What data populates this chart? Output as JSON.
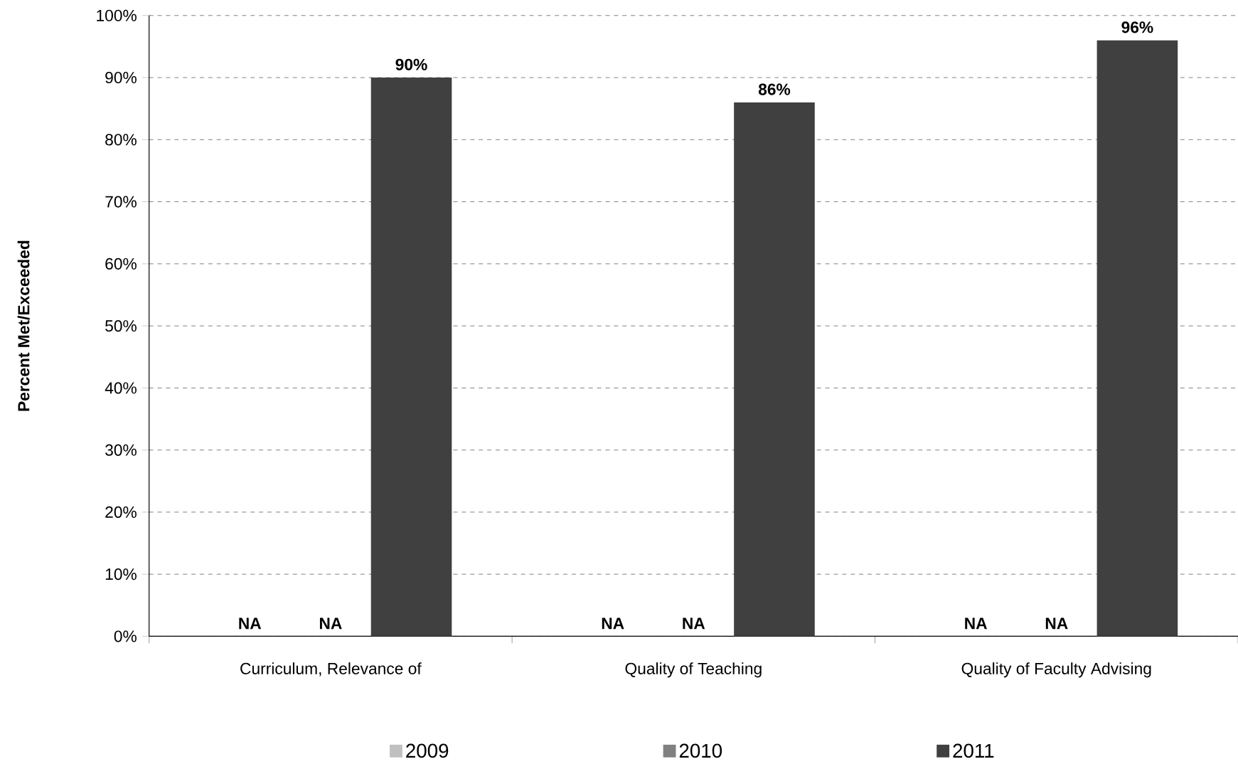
{
  "chart_data": {
    "type": "bar",
    "ylabel": "Percent Met/Exceeded",
    "categories": [
      "Curriculum,  Relevance of",
      "Quality of Teaching",
      "Quality of Faculty Advising"
    ],
    "series": [
      {
        "name": "2009",
        "color": "#c0c0c0",
        "values": [
          null,
          null,
          null
        ],
        "value_labels": [
          "NA",
          "NA",
          "NA"
        ]
      },
      {
        "name": "2010",
        "color": "#808080",
        "values": [
          null,
          null,
          null
        ],
        "value_labels": [
          "NA",
          "NA",
          "NA"
        ]
      },
      {
        "name": "2011",
        "color": "#404040",
        "values": [
          90,
          86,
          96
        ],
        "value_labels": [
          "90%",
          "86%",
          "96%"
        ]
      }
    ],
    "ylim": [
      0,
      100
    ],
    "yticks": [
      {
        "value": 0,
        "label": "0%"
      },
      {
        "value": 10,
        "label": "10%"
      },
      {
        "value": 20,
        "label": "20%"
      },
      {
        "value": 30,
        "label": "30%"
      },
      {
        "value": 40,
        "label": "40%"
      },
      {
        "value": 50,
        "label": "50%"
      },
      {
        "value": 60,
        "label": "60%"
      },
      {
        "value": 70,
        "label": "70%"
      },
      {
        "value": 80,
        "label": "80%"
      },
      {
        "value": 90,
        "label": "90%"
      },
      {
        "value": 100,
        "label": "100%"
      }
    ],
    "grid": "y",
    "legend": "bottom"
  }
}
